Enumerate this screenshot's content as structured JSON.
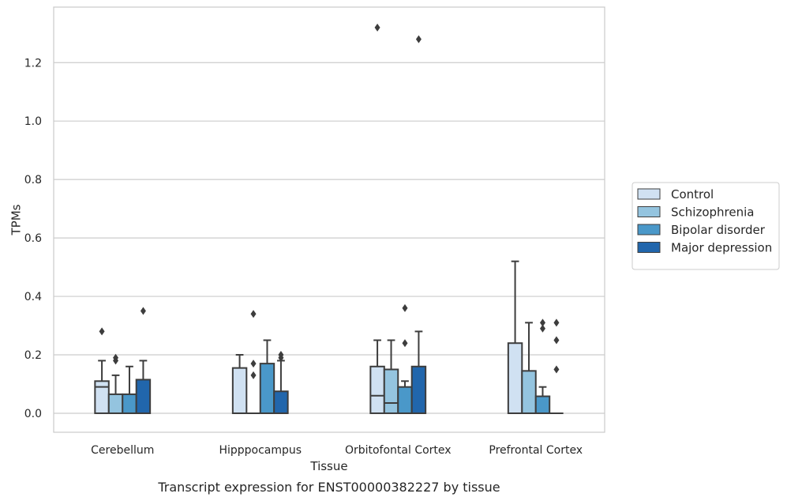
{
  "chart_data": {
    "type": "box",
    "xlabel": "Tissue",
    "ylabel": "TPMs",
    "caption": "Transcript expression for ENST00000382227 by tissue",
    "ylim": [
      -0.065,
      1.39
    ],
    "yticks": [
      "0.0",
      "0.2",
      "0.4",
      "0.6",
      "0.8",
      "1.0",
      "1.2"
    ],
    "grid": "horizontal",
    "legend_position": "right",
    "categories": [
      "Cerebellum",
      "Hipppocampus",
      "Orbitofontal Cortex",
      "Prefrontal Cortex"
    ],
    "series": [
      {
        "name": "Control",
        "color": "#d0e1f2",
        "boxes": [
          {
            "q1": 0,
            "median": 0.09,
            "q3": 0.11,
            "whisker_low": 0,
            "whisker_high": 0.18,
            "outliers": [
              0.28
            ]
          },
          {
            "q1": 0,
            "median": 0,
            "q3": 0.155,
            "whisker_low": 0,
            "whisker_high": 0.2,
            "outliers": []
          },
          {
            "q1": 0,
            "median": 0.06,
            "q3": 0.16,
            "whisker_low": 0,
            "whisker_high": 0.25,
            "outliers": [
              1.32
            ]
          },
          {
            "q1": 0,
            "median": 0,
            "q3": 0.24,
            "whisker_low": 0,
            "whisker_high": 0.52,
            "outliers": []
          }
        ]
      },
      {
        "name": "Schizophrenia",
        "color": "#94c4df",
        "boxes": [
          {
            "q1": 0,
            "median": 0,
            "q3": 0.065,
            "whisker_low": 0,
            "whisker_high": 0.13,
            "outliers": [
              0.18,
              0.19
            ]
          },
          {
            "q1": 0,
            "median": 0,
            "q3": 0,
            "whisker_low": 0,
            "whisker_high": 0,
            "outliers": [
              0.13,
              0.17,
              0.34
            ]
          },
          {
            "q1": 0,
            "median": 0.035,
            "q3": 0.15,
            "whisker_low": 0,
            "whisker_high": 0.25,
            "outliers": []
          },
          {
            "q1": 0,
            "median": 0,
            "q3": 0.145,
            "whisker_low": 0,
            "whisker_high": 0.31,
            "outliers": []
          }
        ]
      },
      {
        "name": "Bipolar disorder",
        "color": "#4a98c9",
        "boxes": [
          {
            "q1": 0,
            "median": 0,
            "q3": 0.065,
            "whisker_low": 0,
            "whisker_high": 0.16,
            "outliers": []
          },
          {
            "q1": 0,
            "median": 0,
            "q3": 0.17,
            "whisker_low": 0,
            "whisker_high": 0.25,
            "outliers": []
          },
          {
            "q1": 0,
            "median": 0,
            "q3": 0.09,
            "whisker_low": 0,
            "whisker_high": 0.11,
            "outliers": [
              0.24,
              0.36
            ]
          },
          {
            "q1": 0,
            "median": 0,
            "q3": 0.058,
            "whisker_low": 0,
            "whisker_high": 0.09,
            "outliers": [
              0.29,
              0.31
            ]
          }
        ]
      },
      {
        "name": "Major depression",
        "color": "#2166ac",
        "boxes": [
          {
            "q1": 0,
            "median": 0,
            "q3": 0.115,
            "whisker_low": 0,
            "whisker_high": 0.18,
            "outliers": [
              0.35
            ]
          },
          {
            "q1": 0,
            "median": 0,
            "q3": 0.075,
            "whisker_low": 0,
            "whisker_high": 0.18,
            "outliers": [
              0.19,
              0.2
            ]
          },
          {
            "q1": 0,
            "median": 0,
            "q3": 0.16,
            "whisker_low": 0,
            "whisker_high": 0.28,
            "outliers": [
              1.28
            ]
          },
          {
            "q1": 0,
            "median": 0,
            "q3": 0,
            "whisker_low": 0,
            "whisker_high": 0,
            "outliers": [
              0.15,
              0.25,
              0.31
            ]
          }
        ]
      }
    ]
  }
}
